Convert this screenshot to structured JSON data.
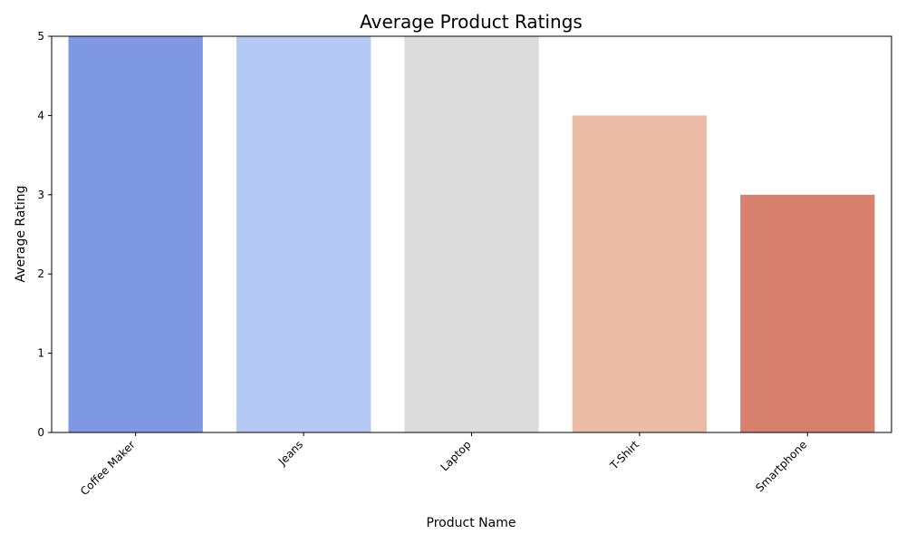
{
  "chart_data": {
    "type": "bar",
    "title": "Average Product Ratings",
    "xlabel": "Product Name",
    "ylabel": "Average Rating",
    "categories": [
      "Coffee Maker",
      "Jeans",
      "Laptop",
      "T-Shirt",
      "Smartphone"
    ],
    "values": [
      5,
      5,
      5,
      4,
      3
    ],
    "colors": [
      "#7f98e3",
      "#b3c9f3",
      "#dcdcdc",
      "#ecbba6",
      "#d6806d"
    ],
    "ylim": [
      0,
      5
    ],
    "yticks": [
      0,
      1,
      2,
      3,
      4,
      5
    ],
    "grid": false,
    "legend": "none"
  }
}
